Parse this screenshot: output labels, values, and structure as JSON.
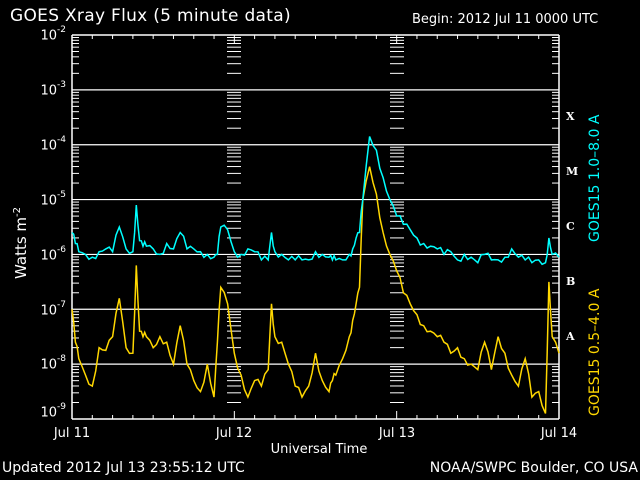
{
  "header": {
    "title": "GOES Xray Flux (5 minute data)",
    "begin": "Begin:  2012 Jul 11 0000 UTC"
  },
  "axes": {
    "ylabel_text": "Watts m",
    "ylabel_sup": "-2",
    "yticks": [
      {
        "base": "10",
        "exp": "-2"
      },
      {
        "base": "10",
        "exp": "-3"
      },
      {
        "base": "10",
        "exp": "-4"
      },
      {
        "base": "10",
        "exp": "-5"
      },
      {
        "base": "10",
        "exp": "-6"
      },
      {
        "base": "10",
        "exp": "-7"
      },
      {
        "base": "10",
        "exp": "-8"
      },
      {
        "base": "10",
        "exp": "-9"
      }
    ],
    "xticks": [
      "Jul 11",
      "Jul 12",
      "Jul 13",
      "Jul 14"
    ],
    "xlabel": "Universal Time"
  },
  "flare_classes": [
    "X",
    "M",
    "C",
    "B",
    "A"
  ],
  "legend": {
    "long": {
      "label": "GOES15 1.0–8.0 A",
      "color": "#00ffff"
    },
    "short": {
      "label": "GOES15 0.5–4.0 A",
      "color": "#ffd700"
    }
  },
  "footer": {
    "updated": "Updated 2012 Jul 13 23:55:12 UTC",
    "credit": "NOAA/SWPC Boulder, CO USA"
  },
  "colors": {
    "background": "#000000",
    "axes": "#ffffff",
    "long": "#00ffff",
    "short": "#ffd700"
  },
  "chart_data": {
    "type": "line",
    "title": "GOES Xray Flux (5 minute data)",
    "xlabel": "Universal Time",
    "ylabel": "Watts m^-2",
    "yscale": "log",
    "ylim": [
      1e-09,
      0.01
    ],
    "xlim_hours": [
      0,
      72
    ],
    "x_tick_labels": [
      "Jul 11",
      "Jul 12",
      "Jul 13",
      "Jul 14"
    ],
    "right_axis_labels": [
      "X",
      "M",
      "C",
      "B",
      "A"
    ],
    "grid": "horizontal lines at 1e-3, 1e-4, 1e-5, 1e-6, 1e-7, 1e-8",
    "series": [
      {
        "name": "GOES15 1.0-8.0 A",
        "color": "#00ffff",
        "hours": [
          0,
          0.5,
          1,
          2,
          3,
          4,
          5,
          6,
          7,
          8,
          9,
          9.5,
          10,
          10.5,
          11,
          12,
          13,
          14,
          15,
          16,
          17,
          18,
          19,
          20,
          21,
          21.5,
          22,
          23,
          24,
          25,
          26,
          27,
          28,
          29,
          29.5,
          30,
          31,
          32,
          33,
          34,
          35,
          36,
          37,
          38,
          38.5,
          39,
          40,
          41,
          41.5,
          42,
          42.5,
          43,
          44,
          45,
          46,
          47,
          48,
          49,
          50,
          51,
          52,
          53,
          54,
          55,
          56,
          57,
          58,
          59,
          60,
          61,
          62,
          63,
          64,
          65,
          66,
          67,
          68,
          69,
          70,
          70.5,
          71,
          72
        ],
        "log10_flux": [
          -5.6,
          -5.8,
          -5.95,
          -6.0,
          -6.05,
          -5.95,
          -5.9,
          -5.95,
          -5.5,
          -5.9,
          -5.95,
          -5.1,
          -5.75,
          -5.85,
          -5.85,
          -5.9,
          -6.0,
          -5.8,
          -5.9,
          -5.6,
          -5.9,
          -5.9,
          -5.95,
          -6.0,
          -6.05,
          -6.0,
          -5.5,
          -5.55,
          -5.95,
          -6.0,
          -5.9,
          -5.95,
          -6.1,
          -6.1,
          -5.6,
          -5.95,
          -6.0,
          -6.1,
          -6.1,
          -6.1,
          -6.1,
          -5.95,
          -6.0,
          -6.05,
          -6.1,
          -6.1,
          -6.1,
          -6.0,
          -5.9,
          -5.7,
          -5.6,
          -5.0,
          -3.85,
          -4.1,
          -4.6,
          -5.0,
          -5.3,
          -5.45,
          -5.55,
          -5.7,
          -5.8,
          -5.85,
          -5.9,
          -6.0,
          -5.95,
          -6.1,
          -6.0,
          -6.05,
          -6.15,
          -6.0,
          -6.1,
          -6.1,
          -6.05,
          -5.9,
          -6.05,
          -6.1,
          -6.15,
          -6.1,
          -6.15,
          -5.7,
          -6.0,
          -6.05
        ]
      },
      {
        "name": "GOES15 0.5-4.0 A",
        "color": "#ffd700",
        "hours": [
          0,
          0.5,
          1,
          2,
          3,
          4,
          5,
          6,
          7,
          8,
          9,
          9.5,
          10,
          10.5,
          11,
          12,
          13,
          14,
          15,
          16,
          17,
          18,
          19,
          20,
          21,
          21.5,
          22,
          23,
          24,
          25,
          26,
          27,
          28,
          29,
          29.5,
          30,
          31,
          32,
          33,
          34,
          35,
          36,
          37,
          38,
          38.5,
          39,
          40,
          41,
          41.5,
          42,
          42.5,
          43,
          44,
          45,
          46,
          47,
          48,
          49,
          50,
          51,
          52,
          53,
          54,
          55,
          56,
          57,
          58,
          59,
          60,
          61,
          62,
          63,
          64,
          65,
          66,
          67,
          68,
          69,
          70,
          70.5,
          71,
          72
        ],
        "log10_flux": [
          -7.0,
          -7.6,
          -7.9,
          -8.2,
          -8.4,
          -7.7,
          -7.75,
          -7.5,
          -6.8,
          -7.7,
          -7.8,
          -6.2,
          -7.4,
          -7.5,
          -7.5,
          -7.7,
          -7.5,
          -7.6,
          -8.0,
          -7.3,
          -8.0,
          -8.3,
          -8.5,
          -8.0,
          -8.6,
          -7.6,
          -6.6,
          -6.9,
          -7.8,
          -8.2,
          -8.6,
          -8.3,
          -8.4,
          -8.1,
          -6.9,
          -7.5,
          -7.6,
          -8.0,
          -8.4,
          -8.6,
          -8.4,
          -7.8,
          -8.3,
          -8.5,
          -8.3,
          -8.2,
          -7.9,
          -7.5,
          -7.2,
          -6.9,
          -6.6,
          -5.0,
          -4.4,
          -4.9,
          -5.6,
          -6.0,
          -6.3,
          -6.7,
          -6.9,
          -7.1,
          -7.3,
          -7.4,
          -7.5,
          -7.6,
          -7.8,
          -7.7,
          -7.9,
          -8.0,
          -8.1,
          -7.6,
          -8.1,
          -7.5,
          -7.8,
          -8.2,
          -8.4,
          -7.9,
          -8.6,
          -8.5,
          -8.9,
          -6.5,
          -7.5,
          -7.8
        ]
      }
    ]
  }
}
